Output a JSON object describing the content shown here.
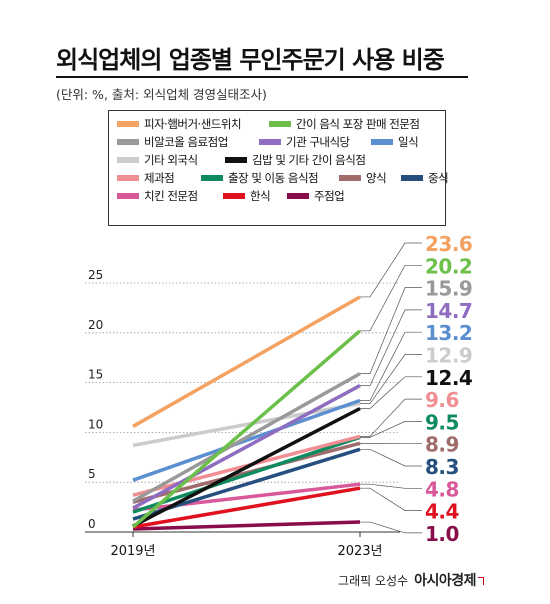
{
  "title": "외식업체의 업종별 무인주문기 사용 비중",
  "subtitle": "(단위: %, 출처: 외식업체 경영실태조사)",
  "credit": {
    "text": "그래픽 오성수",
    "brand": "아시아경제"
  },
  "chart_data": {
    "type": "line",
    "categories": [
      "2019년",
      "2023년"
    ],
    "yticks": [
      0,
      5,
      10,
      15,
      20,
      25
    ],
    "ylim": [
      0,
      25
    ],
    "grid": true,
    "legend_position": "top",
    "series": [
      {
        "name": "피자·햄버거·샌드위치",
        "color": "#f4a261",
        "values": [
          10.6,
          23.6
        ]
      },
      {
        "name": "간이 음식 포장 판매 전문점",
        "color": "#6cc04a",
        "values": [
          0.5,
          20.2
        ]
      },
      {
        "name": "비알코올 음료점업",
        "color": "#999999",
        "values": [
          3.1,
          15.9
        ]
      },
      {
        "name": "기관 구내식당",
        "color": "#8e6cc0",
        "values": [
          2.4,
          14.7
        ]
      },
      {
        "name": "일식",
        "color": "#5b8fd0",
        "values": [
          5.2,
          13.2
        ]
      },
      {
        "name": "기타 외국식",
        "color": "#cccccc",
        "values": [
          8.7,
          12.9
        ]
      },
      {
        "name": "김밥 및 기타 간이 음식점",
        "color": "#111111",
        "values": [
          0.6,
          12.4
        ]
      },
      {
        "name": "제과점",
        "color": "#f08e93",
        "values": [
          3.7,
          9.6
        ]
      },
      {
        "name": "출장 및 이동 음식점",
        "color": "#0e8a5f",
        "values": [
          2.0,
          9.5
        ]
      },
      {
        "name": "양식",
        "color": "#a06b6b",
        "values": [
          3.0,
          8.9
        ]
      },
      {
        "name": "중식",
        "color": "#244f7e",
        "values": [
          1.3,
          8.3
        ]
      },
      {
        "name": "치킨 전문점",
        "color": "#d9589a",
        "values": [
          2.2,
          4.8
        ]
      },
      {
        "name": "한식",
        "color": "#e0101e",
        "values": [
          0.5,
          4.4
        ]
      },
      {
        "name": "주점업",
        "color": "#8a0d4b",
        "values": [
          0.3,
          1.0
        ]
      }
    ]
  }
}
